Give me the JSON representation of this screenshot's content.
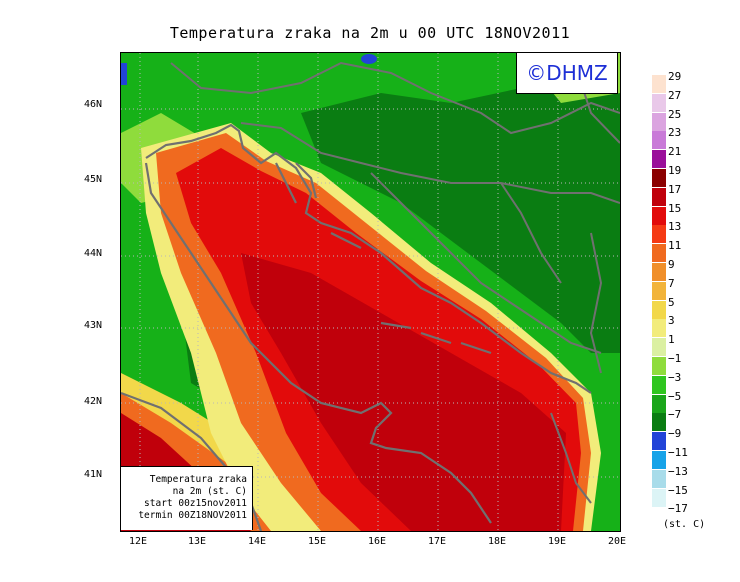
{
  "title": "Temperatura zraka na 2m u 00 UTC 18NOV2011",
  "badge": "©DHMZ",
  "lat_labels": [
    "46N",
    "45N",
    "44N",
    "43N",
    "42N",
    "41N"
  ],
  "lon_labels": [
    "12E",
    "13E",
    "14E",
    "15E",
    "16E",
    "17E",
    "18E",
    "19E",
    "20E"
  ],
  "info": {
    "line1": "Temperatura zraka",
    "line2": "na 2m (st. C)",
    "line3": "start 00z15nov2011",
    "line4": "termin 00Z18NOV2011"
  },
  "legend": {
    "unit": "(st. C)",
    "labels": [
      "29",
      "27",
      "25",
      "23",
      "21",
      "19",
      "17",
      "15",
      "13",
      "11",
      "9",
      "7",
      "5",
      "3",
      "1",
      "−1",
      "−3",
      "−5",
      "−7",
      "−9",
      "−11",
      "−13",
      "−15",
      "−17"
    ],
    "colors": [
      "#fde2cf",
      "#e9c8e9",
      "#dba4e0",
      "#c97ad8",
      "#9a0f9a",
      "#8b0000",
      "#c0000b",
      "#e20b0b",
      "#f53a14",
      "#f06a1f",
      "#f08f2a",
      "#f2b43b",
      "#f2d84a",
      "#f2ec7b",
      "#dbf0a2",
      "#8fdc3c",
      "#2fc61f",
      "#1aa61a",
      "#0a7d12",
      "#2244d8",
      "#17a3e8",
      "#a8dcea",
      "#dcf4f6",
      "#ffffff"
    ]
  },
  "colors": {
    "land_green": "#16b118",
    "dark_green": "#0a7d12",
    "sea_red": "#e20b0b",
    "sea_deep": "#c0000b",
    "coast_orange": "#f06a1f",
    "coast_yellow": "#f2d84a",
    "border_gray": "#707070"
  }
}
